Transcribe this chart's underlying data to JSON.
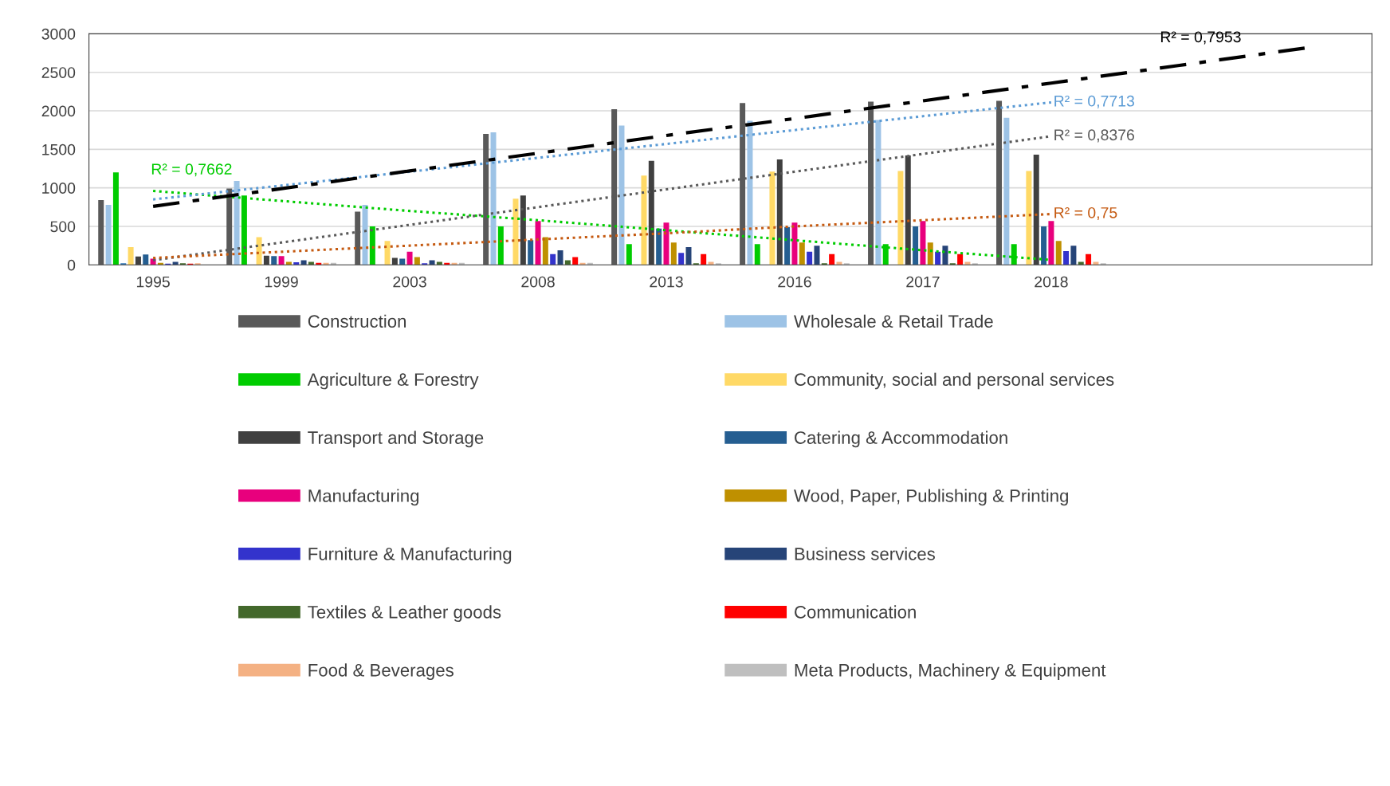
{
  "chart_data": {
    "type": "bar",
    "categories": [
      "1995",
      "1999",
      "2003",
      "2008",
      "2013",
      "2016",
      "2017",
      "2018",
      null,
      null
    ],
    "ylim": [
      0,
      3000
    ],
    "yticks": [
      0,
      500,
      1000,
      1500,
      2000,
      2500,
      3000
    ],
    "grid": "y",
    "legend": "bottom",
    "series": [
      {
        "name": "Construction",
        "color": "#595959",
        "values": [
          840,
          990,
          690,
          1700,
          2020,
          2100,
          2120,
          2130,
          null,
          null
        ]
      },
      {
        "name": "Wholesale & Retail Trade",
        "color": "#9dc3e6",
        "values": [
          780,
          1090,
          780,
          1720,
          1810,
          1870,
          1880,
          1910,
          null,
          null
        ]
      },
      {
        "name": "Agriculture & Forestry",
        "color": "#00cc00",
        "values": [
          1200,
          900,
          500,
          500,
          270,
          270,
          270,
          270,
          null,
          null
        ]
      },
      {
        "color": "#2e75b6",
        "values": [
          20,
          null,
          null,
          null,
          null,
          null,
          null,
          null,
          null,
          null
        ]
      },
      {
        "name": "Community, social and personal services",
        "color": "#ffd966",
        "values": [
          230,
          360,
          310,
          860,
          1160,
          1210,
          1220,
          1220,
          null,
          null
        ]
      },
      {
        "name": "Transport and Storage",
        "color": "#404040",
        "values": [
          110,
          120,
          90,
          900,
          1350,
          1370,
          1420,
          1430,
          null,
          null
        ]
      },
      {
        "name": "Catering & Accommodation",
        "color": "#255e91",
        "values": [
          135,
          115,
          80,
          320,
          470,
          490,
          500,
          500,
          null,
          null
        ]
      },
      {
        "name": "Manufacturing",
        "color": "#e8007d",
        "values": [
          80,
          115,
          170,
          570,
          550,
          550,
          570,
          570,
          null,
          null
        ]
      },
      {
        "name": "Wood, Paper, Publishing & Printing",
        "color": "#bf9000",
        "values": [
          25,
          40,
          100,
          360,
          290,
          290,
          290,
          310,
          null,
          null
        ]
      },
      {
        "name": "Furniture & Manufacturing",
        "color": "#3333cc",
        "values": [
          15,
          35,
          20,
          140,
          155,
          170,
          170,
          180,
          null,
          null
        ]
      },
      {
        "name": "Business services",
        "color": "#264478",
        "values": [
          40,
          60,
          60,
          190,
          230,
          250,
          250,
          250,
          null,
          null
        ]
      },
      {
        "name": "Textiles & Leather goods",
        "color": "#43682b",
        "values": [
          20,
          40,
          40,
          60,
          20,
          20,
          20,
          40,
          null,
          null
        ]
      },
      {
        "name": "Communication",
        "color": "#ff0000",
        "values": [
          15,
          25,
          25,
          100,
          140,
          140,
          140,
          140,
          null,
          null
        ]
      },
      {
        "name": "Food & Beverages",
        "color": "#f4b183",
        "values": [
          20,
          25,
          25,
          25,
          40,
          40,
          40,
          40,
          null,
          null
        ]
      },
      {
        "name": "Meta Products, Machinery & Equipment",
        "color": "#bfbfbf",
        "values": [
          null,
          25,
          25,
          25,
          20,
          20,
          20,
          20,
          null,
          null
        ]
      },
      {
        "type": "line",
        "name": "R² = 0,7662",
        "color": "#00cc00",
        "line_style": "dotted",
        "values": [
          960,
          830,
          700,
          580,
          450,
          320,
          190,
          65,
          null,
          null
        ]
      },
      {
        "type": "line",
        "name": "R² = 0,7713",
        "color": "#5b9bd5",
        "line_style": "dotted",
        "values": [
          850,
          1030,
          1210,
          1390,
          1570,
          1750,
          1930,
          2110,
          null,
          null
        ]
      },
      {
        "type": "line",
        "name": "R² = 0,8376",
        "color": "#595959",
        "line_style": "dotted",
        "values": [
          60,
          290,
          520,
          750,
          980,
          1210,
          1440,
          1670,
          null,
          null
        ]
      },
      {
        "type": "line",
        "name": "R² = 0,75",
        "color": "#c55a11",
        "line_style": "dotted",
        "values": [
          90,
          170,
          250,
          330,
          410,
          500,
          580,
          660,
          null,
          null
        ]
      },
      {
        "type": "line",
        "name": "R² = 0,7953",
        "color": "#000000",
        "line_style": "dashed",
        "values": [
          760,
          990,
          1220,
          1450,
          1680,
          1900,
          2130,
          2360,
          2590,
          2820
        ]
      }
    ]
  }
}
